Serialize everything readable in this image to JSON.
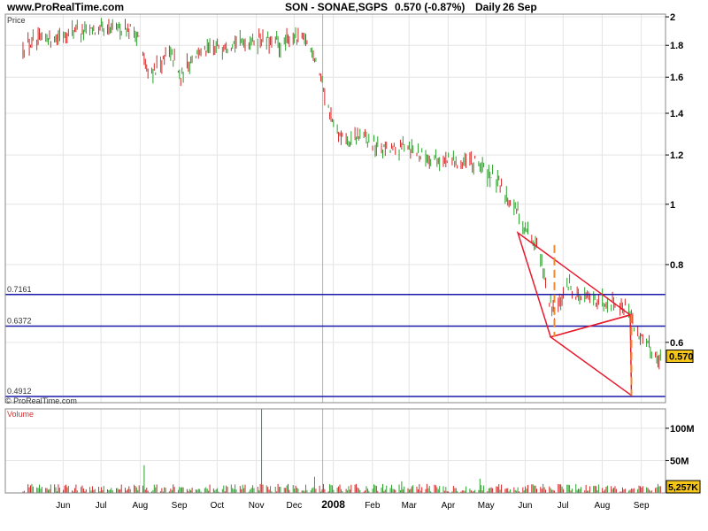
{
  "header": {
    "site": "www.ProRealTime.com",
    "symbol": "SON - SONAE,SGPS",
    "quote": "0.570 (-0.87%)",
    "period": "Daily",
    "date": "26 Sep"
  },
  "watermark": "© ProRealTime.com",
  "chart_data": [
    {
      "type": "bar",
      "title": "Price",
      "ylabel": "Price",
      "scale": "log",
      "ylim": [
        0.48,
        2.02
      ],
      "yticks": [
        {
          "value": 2,
          "label": "2"
        },
        {
          "value": 1.8,
          "label": "1.8"
        },
        {
          "value": 1.6,
          "label": "1.6"
        },
        {
          "value": 1.4,
          "label": "1.4"
        },
        {
          "value": 1.2,
          "label": "1.2"
        },
        {
          "value": 1,
          "label": "1"
        },
        {
          "value": 0.8,
          "label": "0.8"
        },
        {
          "value": 0.6,
          "label": "0.6"
        }
      ],
      "xticks": [
        "Jun",
        "Jul",
        "Aug",
        "Sep",
        "Oct",
        "Nov",
        "Dec",
        "2008",
        "Feb",
        "Mar",
        "Apr",
        "May",
        "Jun",
        "Jul",
        "Aug",
        "Sep"
      ],
      "last_value": "0.570",
      "series": [
        {
          "x": [
            "2007-05-10",
            "2007-06-01",
            "2007-06-20",
            "2007-07-10",
            "2007-07-31",
            "2007-08-10",
            "2007-08-17",
            "2007-08-31",
            "2007-09-05",
            "2007-09-12",
            "2007-09-20",
            "2007-10-05",
            "2007-10-25",
            "2007-11-15",
            "2007-11-30",
            "2007-12-10",
            "2007-12-20",
            "2007-12-28",
            "2008-01-07",
            "2008-01-15",
            "2008-01-23",
            "2008-02-01",
            "2008-02-15",
            "2008-03-01",
            "2008-03-10",
            "2008-03-20",
            "2008-04-01",
            "2008-04-20",
            "2008-05-05",
            "2008-05-20",
            "2008-05-30",
            "2008-06-10",
            "2008-06-20",
            "2008-06-30",
            "2008-07-04",
            "2008-07-15",
            "2008-07-25",
            "2008-08-05",
            "2008-08-20",
            "2008-09-01",
            "2008-09-05",
            "2008-09-12",
            "2008-09-20",
            "2008-09-26"
          ],
          "values": [
            1.8,
            1.85,
            1.91,
            1.89,
            1.93,
            1.85,
            1.6,
            1.72,
            1.74,
            1.58,
            1.72,
            1.78,
            1.82,
            1.84,
            1.8,
            1.86,
            1.83,
            1.72,
            1.42,
            1.28,
            1.25,
            1.29,
            1.23,
            1.22,
            1.25,
            1.2,
            1.18,
            1.17,
            1.16,
            1.08,
            1.02,
            0.92,
            0.86,
            0.7,
            0.66,
            0.74,
            0.71,
            0.7,
            0.7,
            0.68,
            0.64,
            0.6,
            0.58,
            0.57
          ]
        }
      ],
      "annotations": [
        {
          "label": "0.7161",
          "value": 0.7161
        },
        {
          "label": "0.6372",
          "value": 0.6372
        },
        {
          "label": "0.4912",
          "value": 0.4912
        }
      ],
      "triangles": [
        {
          "points": [
            [
              "2008-06-05",
              0.9
            ],
            [
              "2008-09-02",
              0.664
            ],
            [
              "2008-07-01",
              0.612
            ]
          ]
        },
        {
          "points": [
            [
              "2008-07-01",
              0.612
            ],
            [
              "2008-09-02",
              0.664
            ],
            [
              "2008-09-03",
              0.493
            ]
          ]
        }
      ],
      "dashed_lines": [
        {
          "x": "2008-07-04",
          "from": 0.86,
          "to": 0.612
        },
        {
          "x": "2008-09-03",
          "from": 0.664,
          "to": 0.493
        }
      ],
      "grid": true
    },
    {
      "type": "bar",
      "title": "Volume",
      "ylabel": "Volume",
      "ylim": [
        0,
        130
      ],
      "yticks": [
        {
          "value": 100,
          "label": "100M"
        },
        {
          "value": 50,
          "label": "50M"
        }
      ],
      "last_value": "5,257K",
      "spikes": [
        {
          "x": "2007-08-14",
          "value": 43
        },
        {
          "x": "2007-11-15",
          "value": 130
        },
        {
          "x": "2007-12-27",
          "value": 25
        },
        {
          "x": "2008-03-05",
          "value": 18
        },
        {
          "x": "2008-05-06",
          "value": 22
        }
      ],
      "grid": true
    }
  ]
}
